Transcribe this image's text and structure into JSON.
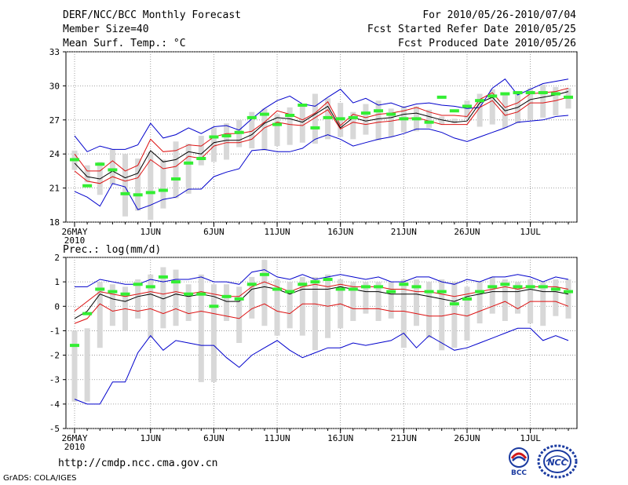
{
  "header": {
    "title": "DERF/NCC/BCC Monthly Forecast",
    "member": "Member Size=40",
    "variable": "Mean Surf. Temp.: °C",
    "period": "For 2010/05/26-2010/07/04",
    "started": "Fcst Started Refer Date 2010/05/25",
    "produced": "Fcst Produced Date 2010/05/26"
  },
  "footer": {
    "url": "http://cmdp.ncc.cma.gov.cn",
    "credit": "GrADS: COLA/IGES",
    "logo_bcc": "BCC",
    "logo_ncc": "NCC"
  },
  "colors": {
    "box": "#d8d8d8",
    "median": "#33ee33",
    "mean": "#000000",
    "spread": "#dd1111",
    "extreme": "#0000cc"
  },
  "chart_data": [
    {
      "type": "line",
      "title": "",
      "ylabel": "",
      "ylim": [
        18,
        33
      ],
      "yticks": [
        18,
        21,
        24,
        27,
        30,
        33
      ],
      "xtick_labels": [
        "26MAY",
        "1JUN",
        "6JUN",
        "11JUN",
        "16JUN",
        "21JUN",
        "26JUN",
        "1JUL"
      ],
      "xtick_days": [
        0,
        6,
        11,
        16,
        21,
        26,
        31,
        36
      ],
      "xsub_label": "2010",
      "days": 40,
      "series": [
        {
          "name": "max",
          "values": [
            25.6,
            24.2,
            24.7,
            24.4,
            24.4,
            24.8,
            26.7,
            25.4,
            25.7,
            26.3,
            25.8,
            26.4,
            26.5,
            26.1,
            27.1,
            28.0,
            28.7,
            29.1,
            28.4,
            28.2,
            29.0,
            29.7,
            28.5,
            28.9,
            28.3,
            28.5,
            28.1,
            28.4,
            28.5,
            28.3,
            28.2,
            28.0,
            28.1,
            29.8,
            30.6,
            29.2,
            29.7,
            30.2,
            30.4,
            30.6
          ]
        },
        {
          "name": "upper",
          "values": [
            24.0,
            22.5,
            22.5,
            23.4,
            22.5,
            23.0,
            25.3,
            24.2,
            24.3,
            24.8,
            24.7,
            25.5,
            25.8,
            25.8,
            26.0,
            26.8,
            27.8,
            27.5,
            27.0,
            27.6,
            28.6,
            26.5,
            27.5,
            27.2,
            27.5,
            27.6,
            27.8,
            28.1,
            27.7,
            27.4,
            27.4,
            27.3,
            28.8,
            29.4,
            28.1,
            28.5,
            29.3,
            29.4,
            29.5,
            29.8
          ]
        },
        {
          "name": "mean",
          "values": [
            23.2,
            22.0,
            21.8,
            22.5,
            21.9,
            22.3,
            24.3,
            23.3,
            23.5,
            24.2,
            24.0,
            25.0,
            25.2,
            25.2,
            25.7,
            26.7,
            27.2,
            27.1,
            26.8,
            27.5,
            28.2,
            26.3,
            27.2,
            26.9,
            27.1,
            27.2,
            27.5,
            27.6,
            27.3,
            27.0,
            26.8,
            26.9,
            28.5,
            29.0,
            27.8,
            28.1,
            28.8,
            29.0,
            29.2,
            29.5
          ]
        },
        {
          "name": "lower",
          "values": [
            22.5,
            21.6,
            21.4,
            22.0,
            21.6,
            21.9,
            23.5,
            22.7,
            22.9,
            23.8,
            23.6,
            24.7,
            25.0,
            25.0,
            25.3,
            26.3,
            26.8,
            26.6,
            26.5,
            27.2,
            27.9,
            26.2,
            26.8,
            26.6,
            26.8,
            26.9,
            27.1,
            27.2,
            26.9,
            26.6,
            26.6,
            26.6,
            28.1,
            28.7,
            27.4,
            27.7,
            28.5,
            28.5,
            28.7,
            29.0
          ]
        },
        {
          "name": "min",
          "values": [
            20.7,
            20.2,
            19.4,
            21.4,
            21.1,
            19.1,
            19.5,
            20.0,
            20.2,
            20.9,
            20.9,
            22.0,
            22.4,
            22.7,
            24.3,
            24.4,
            24.2,
            24.2,
            24.5,
            25.3,
            25.7,
            25.3,
            24.7,
            25.0,
            25.3,
            25.5,
            25.8,
            26.2,
            26.2,
            25.9,
            25.4,
            25.1,
            25.5,
            25.9,
            26.3,
            26.8,
            26.9,
            27.0,
            27.3,
            27.4
          ]
        },
        {
          "name": "median",
          "values": [
            23.5,
            21.2,
            23.1,
            22.6,
            20.5,
            20.4,
            20.6,
            20.8,
            21.8,
            23.2,
            23.6,
            25.5,
            25.6,
            25.9,
            27.2,
            27.5,
            26.6,
            27.4,
            28.3,
            26.3,
            27.2,
            27.1,
            27.2,
            27.6,
            27.8,
            27.5,
            27.1,
            27.1,
            26.8,
            29.0,
            27.8,
            28.2,
            28.7,
            29.1,
            29.3,
            29.4,
            29.4,
            29.4,
            29.3,
            29.0
          ]
        },
        {
          "name": "box_top",
          "values": [
            24.3,
            23.0,
            23.3,
            24.4,
            24.0,
            23.6,
            24.2,
            23.5,
            25.1,
            24.9,
            25.6,
            26.3,
            26.7,
            27.0,
            27.7,
            28.0,
            27.5,
            28.1,
            28.4,
            29.3,
            28.9,
            28.5,
            27.7,
            28.4,
            28.7,
            28.0,
            28.2,
            28.2,
            27.9,
            27.3,
            27.1,
            28.7,
            29.3,
            29.7,
            29.2,
            29.3,
            29.8,
            30.1,
            29.9,
            29.8
          ]
        },
        {
          "name": "box_bottom",
          "values": [
            22.6,
            21.5,
            20.4,
            21.3,
            18.5,
            19.0,
            18.2,
            19.2,
            20.1,
            20.5,
            23.0,
            23.3,
            23.5,
            24.6,
            24.5,
            24.3,
            24.7,
            24.8,
            25.0,
            24.9,
            25.3,
            25.5,
            25.3,
            25.7,
            25.2,
            25.5,
            25.9,
            26.0,
            26.3,
            26.6,
            26.7,
            27.1,
            26.4,
            26.6,
            26.3,
            26.7,
            27.0,
            27.2,
            27.4,
            28.0
          ]
        }
      ]
    },
    {
      "type": "line",
      "title": "Prec.: log(mm/d)",
      "ylabel": "",
      "ylim": [
        -5,
        2
      ],
      "yticks": [
        -5,
        -4,
        -3,
        -2,
        -1,
        0,
        1,
        2
      ],
      "xtick_labels": [
        "26MAY",
        "1JUN",
        "6JUN",
        "11JUN",
        "16JUN",
        "21JUN",
        "26JUN",
        "1JUL"
      ],
      "xtick_days": [
        0,
        6,
        11,
        16,
        21,
        26,
        31,
        36
      ],
      "xsub_label": "2010",
      "days": 40,
      "series": [
        {
          "name": "max",
          "values": [
            0.8,
            0.8,
            1.1,
            1.0,
            0.9,
            0.9,
            1.1,
            1.0,
            1.1,
            1.1,
            1.2,
            1.0,
            1.0,
            0.9,
            1.4,
            1.5,
            1.2,
            1.1,
            1.3,
            1.1,
            1.2,
            1.3,
            1.2,
            1.1,
            1.2,
            1.0,
            1.0,
            1.2,
            1.2,
            1.0,
            0.9,
            1.1,
            1.0,
            1.2,
            1.2,
            1.3,
            1.2,
            1.0,
            1.2,
            1.1
          ]
        },
        {
          "name": "upper",
          "values": [
            -0.2,
            0.2,
            0.6,
            0.5,
            0.4,
            0.5,
            0.6,
            0.5,
            0.6,
            0.5,
            0.6,
            0.5,
            0.4,
            0.4,
            0.8,
            1.0,
            0.8,
            0.6,
            0.8,
            0.9,
            0.8,
            0.9,
            0.8,
            0.8,
            0.8,
            0.7,
            0.7,
            0.6,
            0.6,
            0.5,
            0.4,
            0.5,
            0.6,
            0.7,
            0.8,
            0.7,
            0.8,
            0.8,
            0.8,
            0.7
          ]
        },
        {
          "name": "mean",
          "values": [
            -0.5,
            -0.2,
            0.5,
            0.3,
            0.2,
            0.4,
            0.5,
            0.3,
            0.5,
            0.4,
            0.5,
            0.4,
            0.2,
            0.2,
            0.7,
            0.8,
            0.7,
            0.5,
            0.7,
            0.7,
            0.7,
            0.8,
            0.7,
            0.6,
            0.6,
            0.5,
            0.5,
            0.5,
            0.4,
            0.3,
            0.2,
            0.4,
            0.5,
            0.6,
            0.6,
            0.6,
            0.7,
            0.6,
            0.6,
            0.5
          ]
        },
        {
          "name": "lower",
          "values": [
            -0.7,
            -0.5,
            0.1,
            -0.2,
            -0.1,
            -0.2,
            -0.1,
            -0.3,
            -0.1,
            -0.3,
            -0.2,
            -0.3,
            -0.4,
            -0.5,
            -0.1,
            0.1,
            -0.2,
            -0.3,
            0.1,
            0.1,
            0.0,
            0.1,
            -0.1,
            -0.1,
            -0.1,
            -0.2,
            -0.2,
            -0.3,
            -0.4,
            -0.4,
            -0.3,
            -0.4,
            -0.2,
            0.0,
            0.2,
            -0.1,
            0.2,
            0.2,
            0.2,
            0.0
          ]
        },
        {
          "name": "min",
          "values": [
            -3.8,
            -4.0,
            -4.0,
            -3.1,
            -3.1,
            -1.9,
            -1.2,
            -1.8,
            -1.4,
            -1.5,
            -1.6,
            -1.6,
            -2.1,
            -2.5,
            -2.0,
            -1.7,
            -1.4,
            -1.8,
            -2.1,
            -1.9,
            -1.7,
            -1.7,
            -1.5,
            -1.6,
            -1.5,
            -1.4,
            -1.1,
            -1.7,
            -1.2,
            -1.5,
            -1.8,
            -1.7,
            -1.5,
            -1.3,
            -1.1,
            -0.9,
            -0.9,
            -1.4,
            -1.2,
            -1.4
          ]
        },
        {
          "name": "median",
          "values": [
            -1.6,
            -0.3,
            0.7,
            0.6,
            0.5,
            0.9,
            0.8,
            1.2,
            1.0,
            0.5,
            0.5,
            0.0,
            0.4,
            0.3,
            0.9,
            1.3,
            0.7,
            0.6,
            0.9,
            1.0,
            1.1,
            0.7,
            0.7,
            0.8,
            0.8,
            0.6,
            0.9,
            0.8,
            0.6,
            0.6,
            0.1,
            0.3,
            0.6,
            0.8,
            0.9,
            0.8,
            0.8,
            0.8,
            0.7,
            0.6
          ]
        },
        {
          "name": "box_top",
          "values": [
            -1.0,
            -0.9,
            1.0,
            0.9,
            0.8,
            1.1,
            1.3,
            1.6,
            1.5,
            0.9,
            1.3,
            0.9,
            0.9,
            0.8,
            1.2,
            1.9,
            1.1,
            1.0,
            1.2,
            1.2,
            1.3,
            1.1,
            1.0,
            1.0,
            1.0,
            1.0,
            1.1,
            1.1,
            1.0,
            1.1,
            1.0,
            0.8,
            1.0,
            1.2,
            1.1,
            1.0,
            1.1,
            1.0,
            1.1,
            1.1
          ]
        },
        {
          "name": "box_bottom",
          "values": [
            -3.9,
            -3.9,
            -1.7,
            -0.8,
            -1.0,
            -0.5,
            -1.3,
            -0.9,
            -0.8,
            -0.6,
            -3.1,
            -3.1,
            -0.6,
            -1.5,
            -0.5,
            -0.8,
            -1.2,
            -0.9,
            -1.2,
            -1.8,
            -1.3,
            -0.9,
            -0.6,
            -0.3,
            -0.6,
            -0.5,
            -1.7,
            -0.8,
            -1.3,
            -1.8,
            -1.7,
            -1.4,
            -0.7,
            -0.3,
            -0.6,
            -0.3,
            -0.7,
            -0.8,
            -0.4,
            -0.5
          ]
        }
      ]
    }
  ]
}
